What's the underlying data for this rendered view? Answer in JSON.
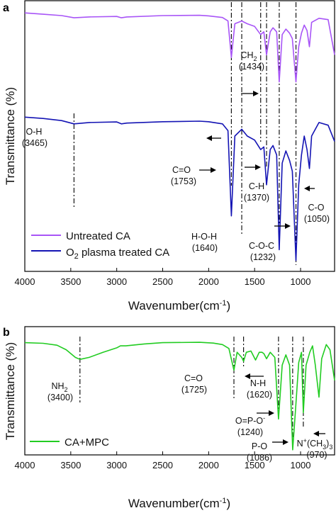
{
  "chart_data": [
    {
      "type": "line",
      "panel": "a",
      "xlabel": "Wavenumber(cm⁻¹)",
      "ylabel": "Transmittance (%)",
      "xlim": [
        4000,
        630
      ],
      "x_ticks": [
        4000,
        3500,
        3000,
        2500,
        2000,
        1500,
        1000
      ],
      "x_tick_labels": [
        "4000",
        "3500",
        "3000",
        "2500",
        "2000",
        "1500",
        "1000"
      ],
      "ylim": [
        0,
        1
      ],
      "y_ticks_labeled": false,
      "legend_position": "bottom-left",
      "series": [
        {
          "name": "Untreated CA",
          "color": "#a855f7",
          "points": [
            [
              4000,
              0.955
            ],
            [
              3800,
              0.95
            ],
            [
              3600,
              0.945
            ],
            [
              3465,
              0.937
            ],
            [
              3300,
              0.94
            ],
            [
              3000,
              0.942
            ],
            [
              2950,
              0.937
            ],
            [
              2890,
              0.94
            ],
            [
              2500,
              0.945
            ],
            [
              2100,
              0.946
            ],
            [
              2000,
              0.944
            ],
            [
              1850,
              0.938
            ],
            [
              1790,
              0.925
            ],
            [
              1753,
              0.79
            ],
            [
              1715,
              0.915
            ],
            [
              1640,
              0.925
            ],
            [
              1580,
              0.915
            ],
            [
              1500,
              0.905
            ],
            [
              1434,
              0.875
            ],
            [
              1400,
              0.885
            ],
            [
              1370,
              0.8
            ],
            [
              1330,
              0.885
            ],
            [
              1300,
              0.9
            ],
            [
              1260,
              0.885
            ],
            [
              1232,
              0.7
            ],
            [
              1200,
              0.875
            ],
            [
              1160,
              0.895
            ],
            [
              1120,
              0.88
            ],
            [
              1090,
              0.86
            ],
            [
              1050,
              0.7
            ],
            [
              1020,
              0.83
            ],
            [
              990,
              0.88
            ],
            [
              960,
              0.91
            ],
            [
              930,
              0.89
            ],
            [
              904,
              0.83
            ],
            [
              880,
              0.92
            ],
            [
              800,
              0.935
            ],
            [
              700,
              0.93
            ],
            [
              630,
              0.8
            ]
          ]
        },
        {
          "name": "O₂ plasma treated CA",
          "color": "#1414b4",
          "points": [
            [
              4000,
              0.57
            ],
            [
              3800,
              0.565
            ],
            [
              3600,
              0.557
            ],
            [
              3465,
              0.545
            ],
            [
              3300,
              0.55
            ],
            [
              3000,
              0.552
            ],
            [
              2950,
              0.545
            ],
            [
              2890,
              0.548
            ],
            [
              2500,
              0.553
            ],
            [
              2100,
              0.555
            ],
            [
              2000,
              0.553
            ],
            [
              1850,
              0.545
            ],
            [
              1790,
              0.52
            ],
            [
              1753,
              0.205
            ],
            [
              1715,
              0.5
            ],
            [
              1640,
              0.525
            ],
            [
              1580,
              0.5
            ],
            [
              1500,
              0.485
            ],
            [
              1434,
              0.45
            ],
            [
              1400,
              0.46
            ],
            [
              1370,
              0.32
            ],
            [
              1330,
              0.45
            ],
            [
              1300,
              0.465
            ],
            [
              1260,
              0.43
            ],
            [
              1232,
              0.08
            ],
            [
              1200,
              0.4
            ],
            [
              1160,
              0.445
            ],
            [
              1120,
              0.41
            ],
            [
              1090,
              0.37
            ],
            [
              1050,
              0.04
            ],
            [
              1020,
              0.32
            ],
            [
              990,
              0.43
            ],
            [
              960,
              0.5
            ],
            [
              930,
              0.45
            ],
            [
              904,
              0.38
            ],
            [
              880,
              0.5
            ],
            [
              800,
              0.55
            ],
            [
              700,
              0.54
            ],
            [
              630,
              0.48
            ]
          ]
        }
      ],
      "reference_lines_x": [
        3465,
        1753,
        1640,
        1434,
        1370,
        1232,
        1050
      ],
      "annotations": [
        {
          "label": "O-H",
          "value": "(3465)"
        },
        {
          "label": "CH₂",
          "value": "(1434)"
        },
        {
          "label": "C=O",
          "value": "(1753)"
        },
        {
          "label": "C-H",
          "value": "(1370)"
        },
        {
          "label": "C-O",
          "value": "(1050)"
        },
        {
          "label": "H-O-H",
          "value": "(1640)"
        },
        {
          "label": "C-O-C",
          "value": "(1232)"
        }
      ]
    },
    {
      "type": "line",
      "panel": "b",
      "xlabel": "Wavenumber(cm⁻¹)",
      "ylabel": "Transmittance (%)",
      "xlim": [
        4000,
        630
      ],
      "x_ticks": [
        4000,
        3500,
        3000,
        2500,
        2000,
        1500,
        1000
      ],
      "x_tick_labels": [
        "4000",
        "3500",
        "3000",
        "2500",
        "2000",
        "1500",
        "1000"
      ],
      "ylim": [
        0,
        1
      ],
      "y_ticks_labeled": false,
      "legend_position": "bottom-left",
      "series": [
        {
          "name": "CA+MPC",
          "color": "#22cc22",
          "points": [
            [
              4000,
              0.875
            ],
            [
              3800,
              0.87
            ],
            [
              3650,
              0.855
            ],
            [
              3550,
              0.82
            ],
            [
              3450,
              0.76
            ],
            [
              3400,
              0.745
            ],
            [
              3300,
              0.76
            ],
            [
              3150,
              0.8
            ],
            [
              3000,
              0.835
            ],
            [
              2960,
              0.85
            ],
            [
              2900,
              0.85
            ],
            [
              2700,
              0.865
            ],
            [
              2500,
              0.875
            ],
            [
              2100,
              0.878
            ],
            [
              1950,
              0.872
            ],
            [
              1850,
              0.86
            ],
            [
              1780,
              0.83
            ],
            [
              1725,
              0.66
            ],
            [
              1690,
              0.8
            ],
            [
              1640,
              0.76
            ],
            [
              1620,
              0.73
            ],
            [
              1590,
              0.8
            ],
            [
              1540,
              0.81
            ],
            [
              1490,
              0.74
            ],
            [
              1450,
              0.8
            ],
            [
              1420,
              0.8
            ],
            [
              1400,
              0.79
            ],
            [
              1370,
              0.75
            ],
            [
              1330,
              0.8
            ],
            [
              1280,
              0.76
            ],
            [
              1240,
              0.28
            ],
            [
              1200,
              0.7
            ],
            [
              1160,
              0.78
            ],
            [
              1120,
              0.7
            ],
            [
              1086,
              0.04
            ],
            [
              1050,
              0.4
            ],
            [
              1020,
              0.72
            ],
            [
              990,
              0.8
            ],
            [
              970,
              0.33
            ],
            [
              940,
              0.7
            ],
            [
              900,
              0.8
            ],
            [
              870,
              0.85
            ],
            [
              840,
              0.7
            ],
            [
              800,
              0.45
            ],
            [
              770,
              0.75
            ],
            [
              720,
              0.86
            ],
            [
              680,
              0.82
            ],
            [
              630,
              0.58
            ]
          ]
        }
      ],
      "reference_lines_x": [
        3400,
        1725,
        1620,
        1240,
        1086,
        970
      ],
      "annotations": [
        {
          "label": "NH₂",
          "value": "(3400)"
        },
        {
          "label": "C=O",
          "value": "(1725)"
        },
        {
          "label": "N-H",
          "value": "(1620)"
        },
        {
          "label": "O=P-O⁻",
          "value": "(1240)"
        },
        {
          "label": "P-O",
          "value": "(1086)"
        },
        {
          "label": "N⁺(CH₃)₃",
          "value": "(970)"
        }
      ]
    }
  ],
  "panels": [
    {
      "letter": "a",
      "ylabel": "Transmittance (%)",
      "xlabel_main": "Wavenumber(cm",
      "xlabel_sup": "-1",
      "xlabel_close": ")",
      "legend": {
        "item1": "Untreated CA",
        "item2_prefix": "O",
        "item2_sub": "2",
        "item2_suffix": " plasma treated CA"
      },
      "ann": {
        "oh_l": "O-H",
        "oh_v": "(3465)",
        "ch2_m": "CH",
        "ch2_s": "2",
        "ch2_v": "(1434)",
        "co_l": "C=O",
        "co_v": "(1753)",
        "ch_l": "C-H",
        "ch_v": "(1370)",
        "cO_l": "C-O",
        "cO_v": "(1050)",
        "hoh_l": "H-O-H",
        "hoh_v": "(1640)",
        "coc_l": "C-O-C",
        "coc_v": "(1232)"
      }
    },
    {
      "letter": "b",
      "ylabel": "Transmittance (%)",
      "xlabel_main": "Wavenumber(cm",
      "xlabel_sup": "-1",
      "xlabel_close": ")",
      "legend": {
        "item1": "CA+MPC"
      },
      "ann": {
        "nh2_m": "NH",
        "nh2_s": "2",
        "nh2_v": "(3400)",
        "co_l": "C=O",
        "co_v": "(1725)",
        "nh_l": "N-H",
        "nh_v": "(1620)",
        "opo_m": "O=P-O",
        "opo_sup": "-",
        "opo_v": "(1240)",
        "po_l": "P-O",
        "po_v": "(1086)",
        "nme_a": "N",
        "nme_sup": "+",
        "nme_b": "(CH",
        "nme_s1": "3",
        "nme_c": ")",
        "nme_s2": "3",
        "nme_v": "(970)"
      }
    }
  ]
}
